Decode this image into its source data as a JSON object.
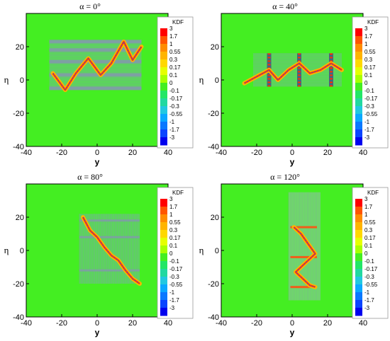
{
  "chart_data": [
    {
      "type": "heatmap",
      "title": "α = 0°",
      "xlabel": "y",
      "ylabel": "η",
      "xlim": [
        -40,
        40
      ],
      "ylim": [
        -40,
        40
      ],
      "xticks": [
        "-40",
        "-20",
        "0",
        "20",
        "40"
      ],
      "yticks": [
        "-40",
        "-20",
        "0",
        "20"
      ],
      "pattern": "horizontal",
      "band_x": [
        -27,
        25
      ],
      "band_y": [
        -6,
        24
      ],
      "grid_lines": [
        -5,
        3,
        11,
        18,
        23
      ],
      "curve": {
        "x": [
          -25,
          -18,
          -12,
          -5,
          2,
          8,
          15,
          20,
          25
        ],
        "y": [
          4,
          -6,
          4,
          13,
          3,
          10,
          23,
          12,
          20
        ]
      }
    },
    {
      "type": "heatmap",
      "title": "α = 40°",
      "xlabel": "y",
      "ylabel": "η",
      "xlim": [
        -40,
        40
      ],
      "ylim": [
        -40,
        40
      ],
      "xticks": [
        "-40",
        "-20",
        "0",
        "20",
        "40"
      ],
      "yticks": [
        "-40",
        "-20",
        "0",
        "20"
      ],
      "pattern": "vertical",
      "band_x": [
        -22,
        28
      ],
      "band_y": [
        -4,
        16
      ],
      "grid_lines": [
        -13,
        4,
        22
      ],
      "curve": {
        "x": [
          -27,
          -20,
          -13,
          -8,
          -2,
          4,
          10,
          16,
          22,
          28
        ],
        "y": [
          -2,
          2,
          6,
          0,
          6,
          10,
          4,
          6,
          10,
          6
        ]
      }
    },
    {
      "type": "heatmap",
      "title": "α = 80°",
      "xlabel": "y",
      "ylabel": "η",
      "xlim": [
        -40,
        40
      ],
      "ylim": [
        -40,
        40
      ],
      "xticks": [
        "-40",
        "-20",
        "0",
        "20",
        "40"
      ],
      "yticks": [
        "-40",
        "-20",
        "0",
        "20"
      ],
      "pattern": "grid",
      "band_x": [
        -10,
        24
      ],
      "band_y": [
        -20,
        22
      ],
      "grid_lines": [
        -7,
        -1,
        5,
        11,
        17,
        22
      ],
      "curve": {
        "x": [
          -8,
          -4,
          0,
          4,
          8,
          12,
          16,
          20,
          24
        ],
        "y": [
          20,
          12,
          8,
          2,
          -3,
          -6,
          -12,
          -17,
          -20
        ]
      }
    },
    {
      "type": "heatmap",
      "title": "α = 120°",
      "xlabel": "y",
      "ylabel": "η",
      "xlim": [
        -40,
        40
      ],
      "ylim": [
        -40,
        40
      ],
      "xticks": [
        "-40",
        "-20",
        "0",
        "20",
        "40"
      ],
      "yticks": [
        "-40",
        "-20",
        "0",
        "20"
      ],
      "pattern": "columns",
      "band_x": [
        -2,
        16
      ],
      "band_y": [
        -30,
        35
      ],
      "grid_lines": [
        14,
        -4,
        -22
      ],
      "curve": {
        "x": [
          1,
          5,
          9,
          13,
          10,
          6,
          2,
          6,
          10,
          13
        ],
        "y": [
          14,
          10,
          4,
          -2,
          -5,
          -9,
          -13,
          -17,
          -21,
          -22
        ]
      }
    }
  ],
  "legend": {
    "title": "KDF",
    "labels": [
      "3",
      "1.7",
      "1",
      "0.55",
      "0.3",
      "0.17",
      "0.1",
      "0",
      "-0.1",
      "-0.17",
      "-0.3",
      "-0.55",
      "-1",
      "-1.7",
      "-3"
    ],
    "colors": [
      "#ff0000",
      "#ff5500",
      "#ff8c00",
      "#ffb400",
      "#ffd800",
      "#e6ff00",
      "#a8ff00",
      "#44ee22",
      "#22e666",
      "#22d8a0",
      "#22c8e0",
      "#0aa8ff",
      "#0a78ff",
      "#0a44ff",
      "#0000ee"
    ]
  },
  "colors": {
    "background_field": "#44ee22",
    "band_gray": "#8890b8"
  }
}
